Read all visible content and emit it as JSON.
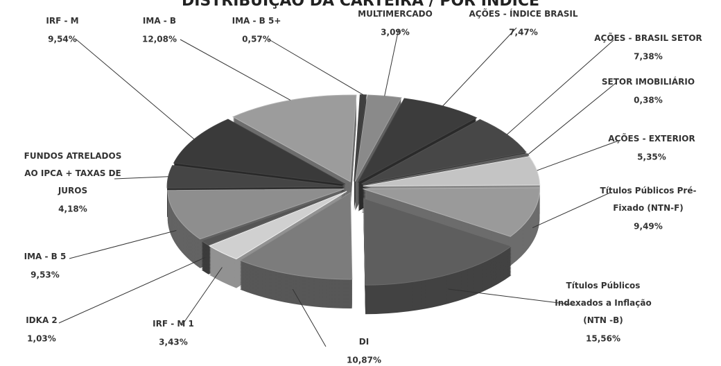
{
  "chart_data": {
    "type": "pie",
    "title": "DISTRIBUIÇÃO DA CARTEIRA / POR ÍNDICE",
    "categories": [
      "MULTIMERCADO",
      "AÇÕES - ÍNDICE BRASIL",
      "AÇÕES - BRASIL SETOR",
      "SETOR IMOBILIÁRIO",
      "AÇÕES - EXTERIOR",
      "Títulos Públicos Pré-\nFixado (NTN-F)",
      "Títulos Públicos\nIndexados a Inflação\n(NTN -B)",
      "DI",
      "IRF - M 1",
      "IDKA 2",
      "IMA - B 5",
      "FUNDOS ATRELADOS\nAO IPCA + TAXAS DE\nJUROS",
      "IRF - M",
      "IMA - B",
      "IMA - B 5+"
    ],
    "values": [
      3.09,
      7.47,
      7.38,
      0.38,
      5.35,
      9.49,
      15.56,
      10.87,
      3.43,
      1.03,
      9.53,
      4.18,
      9.54,
      12.08,
      0.57
    ],
    "value_labels": [
      "3,09%",
      "7,47%",
      "7,38%",
      "0,38%",
      "5,35%",
      "9,49%",
      "15,56%",
      "10,87%",
      "3,43%",
      "1,03%",
      "9,53%",
      "4,18%",
      "9,54%",
      "12,08%",
      "0,57%"
    ],
    "colors": [
      "#8a8a8a",
      "#3c3c3c",
      "#474747",
      "#5a5a5a",
      "#c4c4c4",
      "#9a9a9a",
      "#5e5e5e",
      "#7c7c7c",
      "#d0d0d0",
      "#555555",
      "#8e8e8e",
      "#454545",
      "#3a3a3a",
      "#9c9c9c",
      "#3f3f3f"
    ]
  }
}
